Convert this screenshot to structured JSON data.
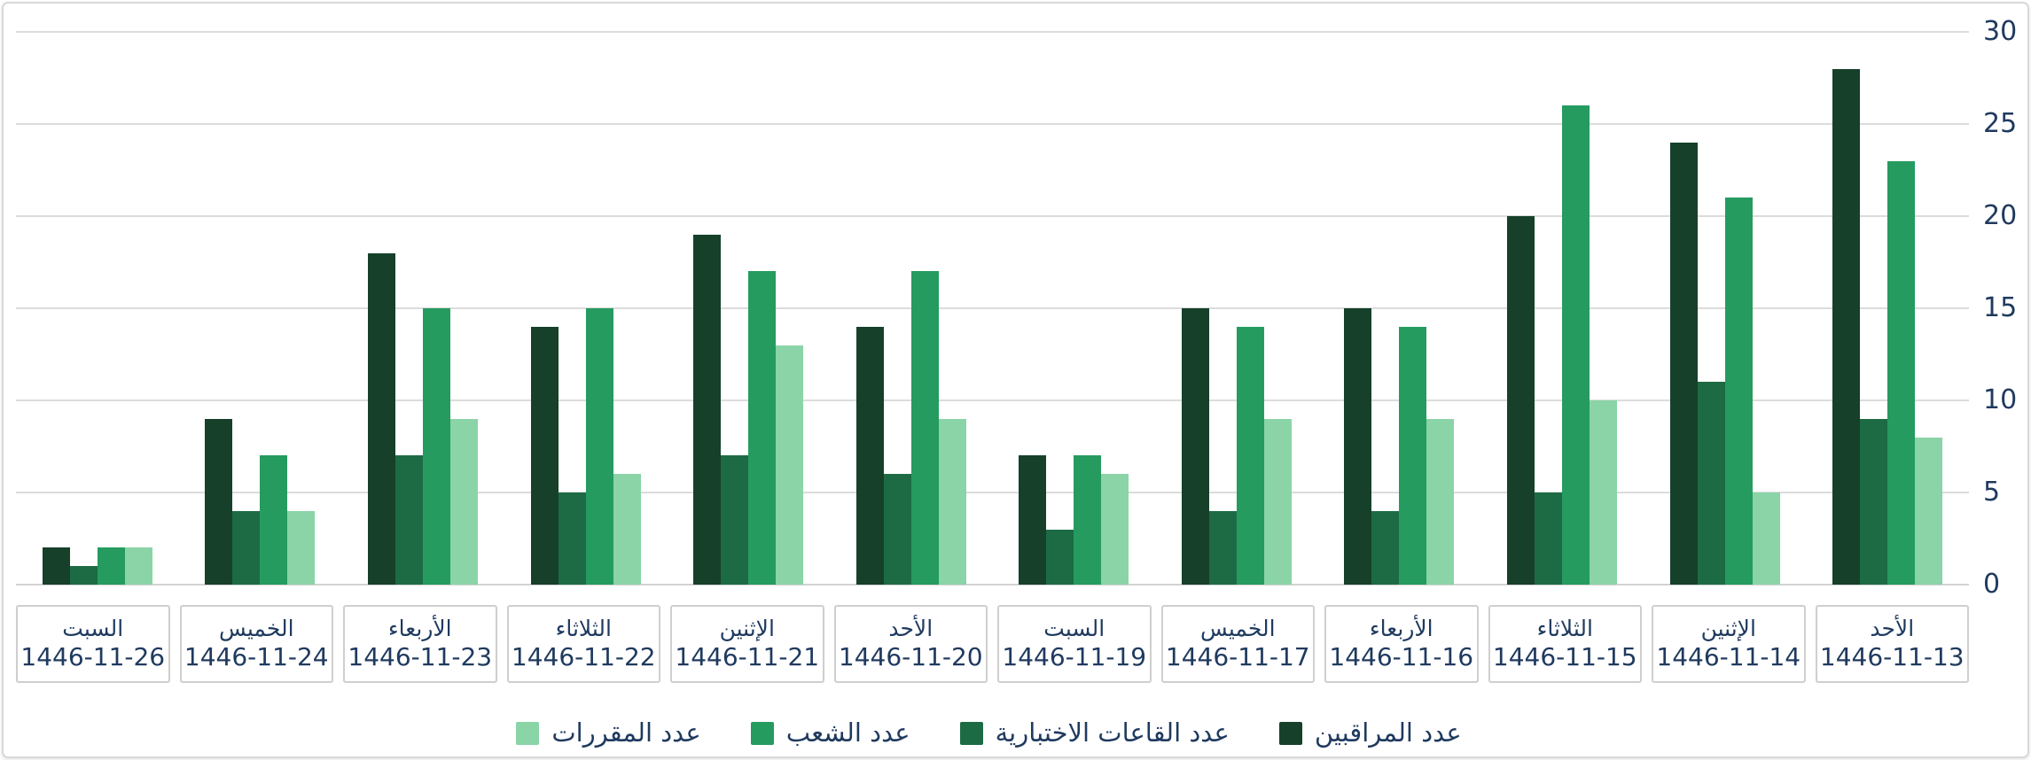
{
  "chart_data": {
    "type": "bar",
    "direction": "rtl",
    "title": "",
    "xlabel": "",
    "ylabel": "",
    "grid": true,
    "legend_position": "bottom",
    "y_axis": {
      "side": "right",
      "min": 0,
      "max": 30,
      "ticks": [
        0,
        5,
        10,
        15,
        20,
        25,
        30
      ]
    },
    "categories": [
      {
        "day": "الأحد",
        "date": "1446-11-13"
      },
      {
        "day": "الإثنين",
        "date": "1446-11-14"
      },
      {
        "day": "الثلاثاء",
        "date": "1446-11-15"
      },
      {
        "day": "الأربعاء",
        "date": "1446-11-16"
      },
      {
        "day": "الخميس",
        "date": "1446-11-17"
      },
      {
        "day": "السبت",
        "date": "1446-11-19"
      },
      {
        "day": "الأحد",
        "date": "1446-11-20"
      },
      {
        "day": "الإثنين",
        "date": "1446-11-21"
      },
      {
        "day": "الثلاثاء",
        "date": "1446-11-22"
      },
      {
        "day": "الأربعاء",
        "date": "1446-11-23"
      },
      {
        "day": "الخميس",
        "date": "1446-11-24"
      },
      {
        "day": "السبت",
        "date": "1446-11-26"
      }
    ],
    "series": [
      {
        "name": "عدد المراقبين",
        "key": "supervisors",
        "color": "#16402a",
        "values": [
          28,
          24,
          20,
          15,
          15,
          7,
          14,
          19,
          14,
          18,
          9,
          2
        ]
      },
      {
        "name": "عدد القاعات الاختبارية",
        "key": "exam-halls",
        "color": "#1d6b44",
        "values": [
          9,
          11,
          5,
          4,
          4,
          3,
          6,
          7,
          5,
          7,
          4,
          1
        ]
      },
      {
        "name": "عدد الشعب",
        "key": "sections",
        "color": "#259b60",
        "values": [
          23,
          21,
          26,
          14,
          14,
          7,
          17,
          17,
          15,
          15,
          7,
          2
        ]
      },
      {
        "name": "عدد المقررات",
        "key": "courses",
        "color": "#8ad4a7",
        "values": [
          8,
          5,
          10,
          9,
          9,
          6,
          9,
          13,
          6,
          9,
          4,
          2
        ]
      }
    ]
  },
  "styles": {
    "text_color": "#1f3a5f",
    "gridline_color": "#dcdcdc",
    "axis_line_color": "#d2d2d2",
    "card_border_color": "#d8d8d8",
    "category_box_border_color": "#cfcfcf",
    "background": "#ffffff"
  }
}
